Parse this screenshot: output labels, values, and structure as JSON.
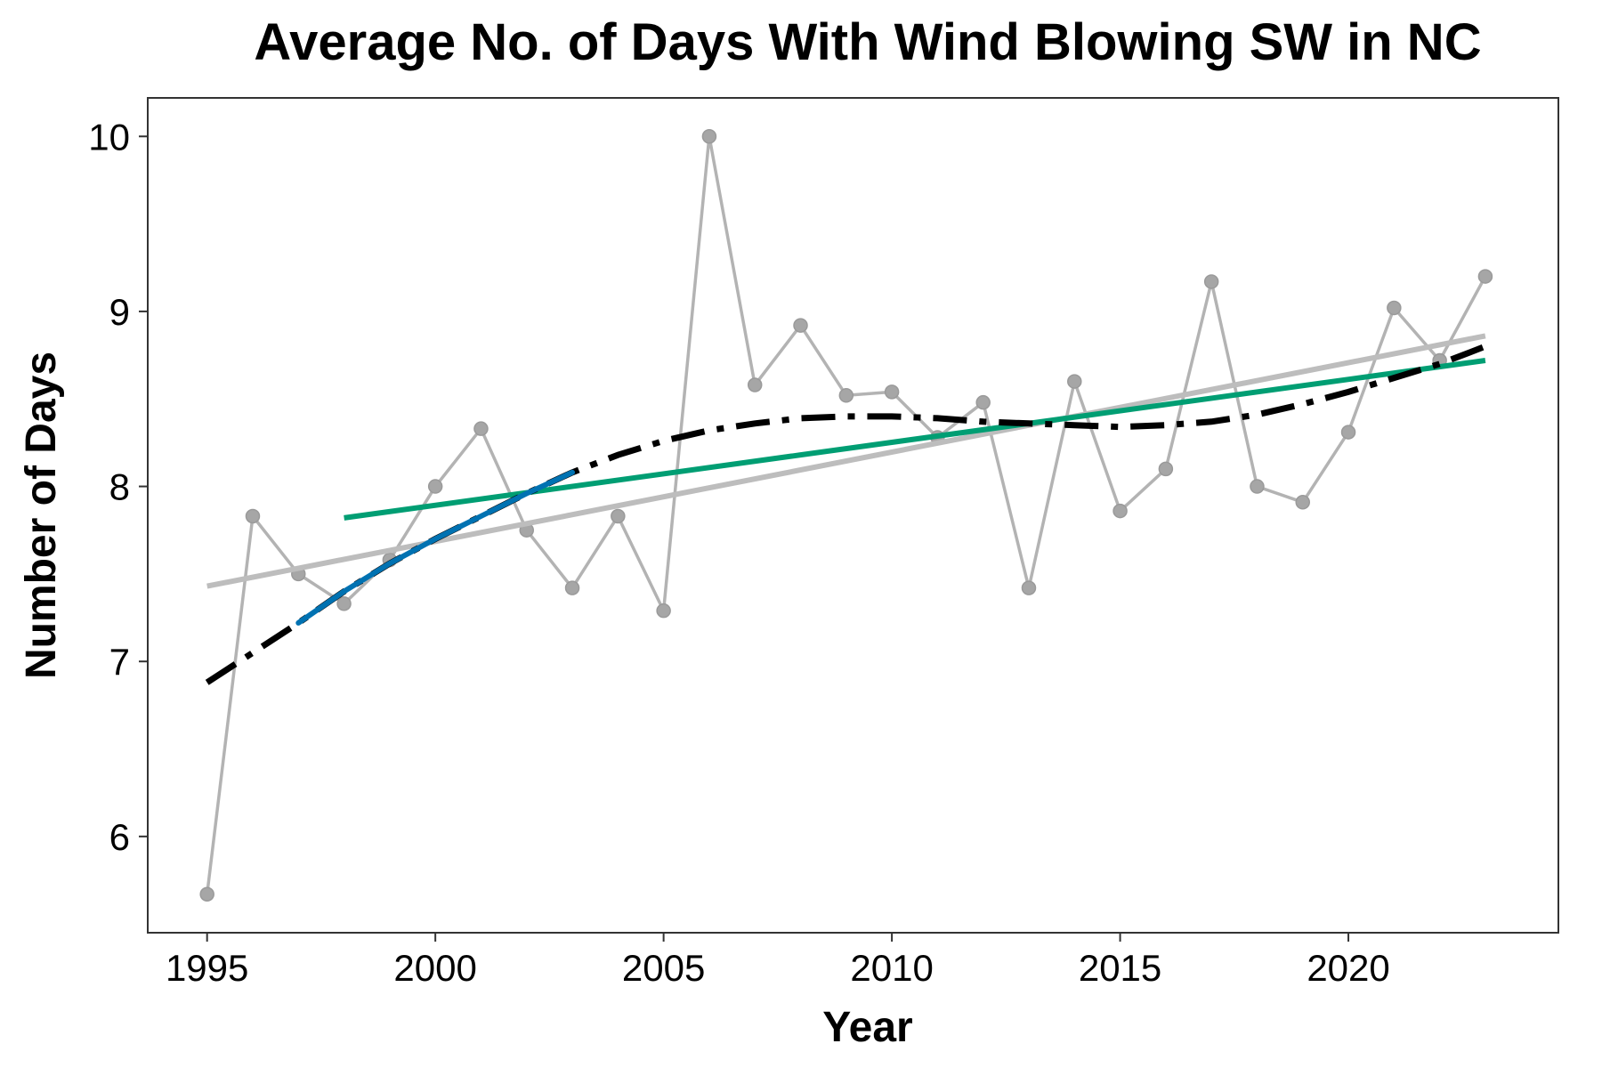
{
  "chart_data": {
    "type": "line",
    "title": "Average No. of Days With Wind Blowing SW in NC",
    "xlabel": "Year",
    "ylabel": "Number of Days",
    "xlim": [
      1993.7,
      2024.6
    ],
    "ylim": [
      5.45,
      10.22
    ],
    "xticks": [
      1995,
      2000,
      2005,
      2010,
      2015,
      2020
    ],
    "yticks": [
      6,
      7,
      8,
      9,
      10
    ],
    "grid": false,
    "series": [
      {
        "kind": "observed",
        "style": "line+points",
        "color": "#b3b3b3",
        "x": [
          1995,
          1996,
          1997,
          1998,
          1999,
          2000,
          2001,
          2002,
          2003,
          2004,
          2005,
          2006,
          2007,
          2008,
          2009,
          2010,
          2011,
          2012,
          2013,
          2014,
          2015,
          2016,
          2017,
          2018,
          2019,
          2020,
          2021,
          2022,
          2023
        ],
        "y": [
          5.67,
          7.83,
          7.5,
          7.33,
          7.58,
          8.0,
          8.33,
          7.75,
          7.42,
          7.83,
          7.29,
          10.0,
          8.58,
          8.92,
          8.52,
          8.54,
          8.28,
          8.48,
          7.42,
          8.6,
          7.86,
          8.1,
          9.17,
          8.0,
          7.91,
          8.31,
          9.02,
          8.72,
          9.2
        ]
      },
      {
        "kind": "linear-trend-full",
        "style": "line",
        "color": "#bdbdbd",
        "x": [
          1995,
          2023
        ],
        "y": [
          7.43,
          8.86
        ]
      },
      {
        "kind": "linear-trend-from-1998",
        "style": "line",
        "color": "#009e73",
        "x": [
          1998,
          2023
        ],
        "y": [
          7.82,
          8.72
        ]
      },
      {
        "kind": "smooth-fit",
        "style": "dashdot",
        "color": "#000000",
        "x": [
          1995,
          1996,
          1997,
          1998,
          1999,
          2000,
          2001,
          2002,
          2003,
          2004,
          2005,
          2006,
          2007,
          2008,
          2009,
          2010,
          2011,
          2012,
          2013,
          2014,
          2015,
          2016,
          2017,
          2018,
          2019,
          2020,
          2021,
          2022,
          2023
        ],
        "y": [
          6.88,
          7.05,
          7.22,
          7.4,
          7.56,
          7.7,
          7.83,
          7.96,
          8.08,
          8.18,
          8.26,
          8.32,
          8.36,
          8.39,
          8.4,
          8.4,
          8.39,
          8.37,
          8.36,
          8.35,
          8.34,
          8.35,
          8.37,
          8.41,
          8.47,
          8.54,
          8.62,
          8.7,
          8.8
        ]
      },
      {
        "kind": "smooth-fit-highlight",
        "style": "line",
        "color": "#0072b2",
        "x": [
          1997,
          1998,
          1999,
          2000,
          2001,
          2002,
          2003
        ],
        "y": [
          7.22,
          7.4,
          7.56,
          7.7,
          7.83,
          7.96,
          8.08
        ]
      }
    ]
  }
}
